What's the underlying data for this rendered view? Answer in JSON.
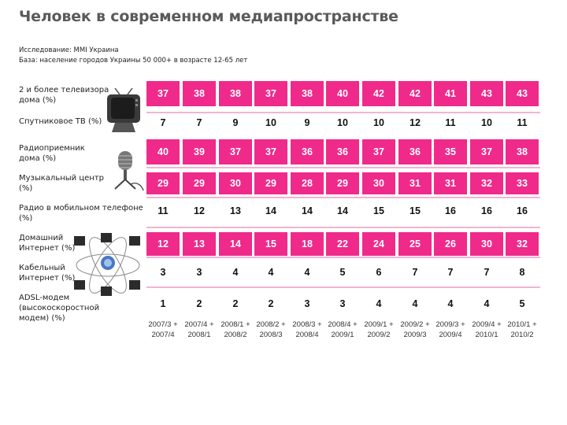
{
  "title": "Человек в современном медиапространстве",
  "source": {
    "line1": "Исследование: MMI Украина",
    "line2": "База: население городов Украины 50 000+ в возрасте 12-65 лет"
  },
  "periods": [
    {
      "l1": "2007/3 +",
      "l2": "2007/4"
    },
    {
      "l1": "2007/4 +",
      "l2": "2008/1"
    },
    {
      "l1": "2008/1 +",
      "l2": "2008/2"
    },
    {
      "l1": "2008/2 +",
      "l2": "2008/3"
    },
    {
      "l1": "2008/3 +",
      "l2": "2008/4"
    },
    {
      "l1": "2008/4 +",
      "l2": "2009/1"
    },
    {
      "l1": "2009/1 +",
      "l2": "2009/2"
    },
    {
      "l1": "2009/2 +",
      "l2": "2009/3"
    },
    {
      "l1": "2009/3 +",
      "l2": "2009/4"
    },
    {
      "l1": "2009/4 +",
      "l2": "2010/1"
    },
    {
      "l1": "2010/1 +",
      "l2": "2010/2"
    }
  ],
  "rows": [
    {
      "l1": "2 и более телевизора",
      "l2": "дома (%)",
      "values": [
        37,
        38,
        38,
        37,
        38,
        40,
        42,
        42,
        41,
        43,
        43
      ],
      "style": "pink"
    },
    {
      "l1": "Спутниковое ТВ (%)",
      "l2": "",
      "values": [
        7,
        7,
        9,
        10,
        9,
        10,
        10,
        12,
        11,
        10,
        11
      ],
      "style": "white"
    },
    {
      "l1": "Радиоприемник",
      "l2": "дома (%)",
      "values": [
        40,
        39,
        37,
        37,
        36,
        36,
        37,
        36,
        35,
        37,
        38
      ],
      "style": "pink"
    },
    {
      "l1": "Музыкальный центр",
      "l2": "(%)",
      "values": [
        29,
        29,
        30,
        29,
        28,
        29,
        30,
        31,
        31,
        32,
        33
      ],
      "style": "pink"
    },
    {
      "l1": "Радио в мобильном телефоне",
      "l2": "(%)",
      "values": [
        11,
        12,
        13,
        14,
        14,
        14,
        15,
        15,
        16,
        16,
        16
      ],
      "style": "white"
    },
    {
      "l1": "Домашний",
      "l2": "Интернет (%)",
      "values": [
        12,
        13,
        14,
        15,
        18,
        22,
        24,
        25,
        26,
        30,
        32
      ],
      "style": "pink"
    },
    {
      "l1": "Кабельный",
      "l2": "Интернет (%)",
      "values": [
        3,
        3,
        4,
        4,
        4,
        5,
        6,
        7,
        7,
        7,
        8
      ],
      "style": "white"
    },
    {
      "l1": "ADSL-модем",
      "l2": "(высокоскоростной",
      "l3": "модем) (%)",
      "values": [
        1,
        2,
        2,
        2,
        3,
        3,
        4,
        4,
        4,
        4,
        5
      ],
      "style": "white"
    }
  ],
  "colors": {
    "accent": "#ef2a8b",
    "band": "#f2b4d2"
  },
  "icons": [
    "tv-icon",
    "microphone-icon",
    "network-computers-icon"
  ]
}
